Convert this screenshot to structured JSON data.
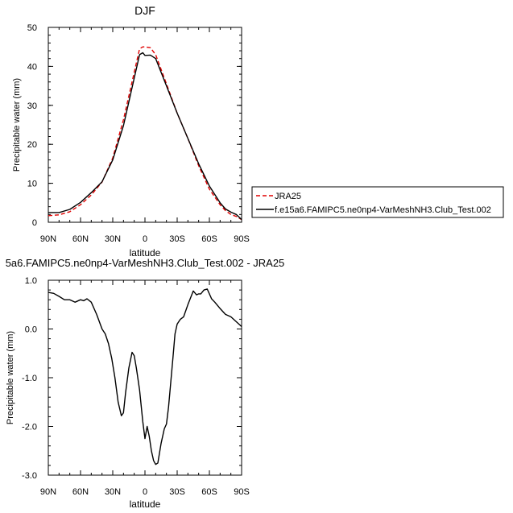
{
  "chart_data": [
    {
      "type": "line",
      "title": "DJF",
      "xlabel": "latitude",
      "ylabel": "Precipitable water (mm)",
      "xlim": [
        90,
        -90
      ],
      "ylim": [
        0,
        50
      ],
      "x_ticks": [
        90,
        60,
        30,
        0,
        -30,
        -60,
        -90
      ],
      "x_tick_labels": [
        "90N",
        "60N",
        "30N",
        "0",
        "30S",
        "60S",
        "90S"
      ],
      "y_ticks": [
        0,
        10,
        20,
        30,
        40,
        50
      ],
      "y_tick_labels": [
        "0",
        "10",
        "20",
        "30",
        "40",
        "50"
      ],
      "legend_position": "outside-right",
      "grid": false,
      "series": [
        {
          "name": "JRA25",
          "color": "#e00000",
          "dash": "dashed",
          "x": [
            90,
            80,
            70,
            60,
            50,
            40,
            30,
            20,
            10,
            5,
            2,
            0,
            -5,
            -10,
            -20,
            -30,
            -40,
            -50,
            -60,
            -70,
            -75,
            -80,
            -85,
            -90
          ],
          "y": [
            1.7,
            1.9,
            2.7,
            4.5,
            7.0,
            10.3,
            16.5,
            26.3,
            38.5,
            44.5,
            45.0,
            45.0,
            44.8,
            43.0,
            35.5,
            28.0,
            21.5,
            14.5,
            8.5,
            4.5,
            3.0,
            2.0,
            1.5,
            0.7
          ]
        },
        {
          "name": "f.e15a6.FAMIPC5.ne0np4-VarMeshNH3.Club_Test.002",
          "color": "#000000",
          "dash": "solid",
          "x": [
            90,
            80,
            70,
            60,
            50,
            40,
            30,
            20,
            10,
            5,
            2,
            0,
            -5,
            -10,
            -20,
            -30,
            -40,
            -50,
            -60,
            -70,
            -75,
            -80,
            -85,
            -90
          ],
          "y": [
            2.5,
            2.5,
            3.3,
            5.1,
            7.6,
            10.4,
            16.0,
            24.8,
            37.0,
            43.0,
            43.5,
            42.8,
            42.9,
            42.0,
            35.0,
            28.0,
            21.5,
            15.0,
            9.3,
            5.0,
            3.4,
            2.6,
            2.0,
            0.7
          ]
        }
      ]
    },
    {
      "type": "line",
      "title": "5a6.FAMIPC5.ne0np4-VarMeshNH3.Club_Test.002 - JRA25",
      "xlabel": "latitude",
      "ylabel": "Precipitable water (mm)",
      "xlim": [
        90,
        -90
      ],
      "ylim": [
        -3.0,
        1.0
      ],
      "x_ticks": [
        90,
        60,
        30,
        0,
        -30,
        -60,
        -90
      ],
      "x_tick_labels": [
        "90N",
        "60N",
        "30N",
        "0",
        "30S",
        "60S",
        "90S"
      ],
      "y_ticks": [
        -3.0,
        -2.0,
        -1.0,
        0.0,
        1.0
      ],
      "y_tick_labels": [
        "-3.0",
        "-2.0",
        "-1.0",
        "0.0",
        "1.0"
      ],
      "grid": false,
      "series": [
        {
          "color": "#000000",
          "dash": "solid",
          "x": [
            90,
            85,
            80,
            75,
            70,
            65,
            60,
            57,
            54,
            50,
            45,
            40,
            37,
            34,
            31,
            28,
            25,
            22,
            20,
            18,
            15,
            12,
            10,
            8,
            5,
            2,
            0,
            -2,
            -4,
            -6,
            -8,
            -10,
            -12,
            -15,
            -18,
            -20,
            -22,
            -24,
            -26,
            -28,
            -30,
            -33,
            -36,
            -40,
            -45,
            -48,
            -50,
            -52,
            -55,
            -58,
            -60,
            -62,
            -65,
            -70,
            -75,
            -80,
            -85,
            -90
          ],
          "y": [
            0.75,
            0.73,
            0.67,
            0.6,
            0.6,
            0.55,
            0.6,
            0.58,
            0.62,
            0.55,
            0.3,
            0.0,
            -0.1,
            -0.3,
            -0.6,
            -1.0,
            -1.5,
            -1.78,
            -1.72,
            -1.3,
            -0.8,
            -0.48,
            -0.55,
            -0.8,
            -1.25,
            -1.9,
            -2.25,
            -2.0,
            -2.2,
            -2.5,
            -2.7,
            -2.78,
            -2.75,
            -2.35,
            -2.05,
            -1.95,
            -1.6,
            -1.1,
            -0.6,
            -0.1,
            0.1,
            0.2,
            0.25,
            0.5,
            0.78,
            0.7,
            0.72,
            0.72,
            0.8,
            0.82,
            0.72,
            0.62,
            0.55,
            0.42,
            0.3,
            0.25,
            0.15,
            0.05
          ]
        }
      ]
    }
  ],
  "legend": {
    "items": [
      {
        "label": "JRA25",
        "color": "#e00000",
        "dash": "dashed"
      },
      {
        "label": "f.e15a6.FAMIPC5.ne0np4-VarMeshNH3.Club_Test.002",
        "color": "#000000",
        "dash": "solid"
      }
    ]
  }
}
